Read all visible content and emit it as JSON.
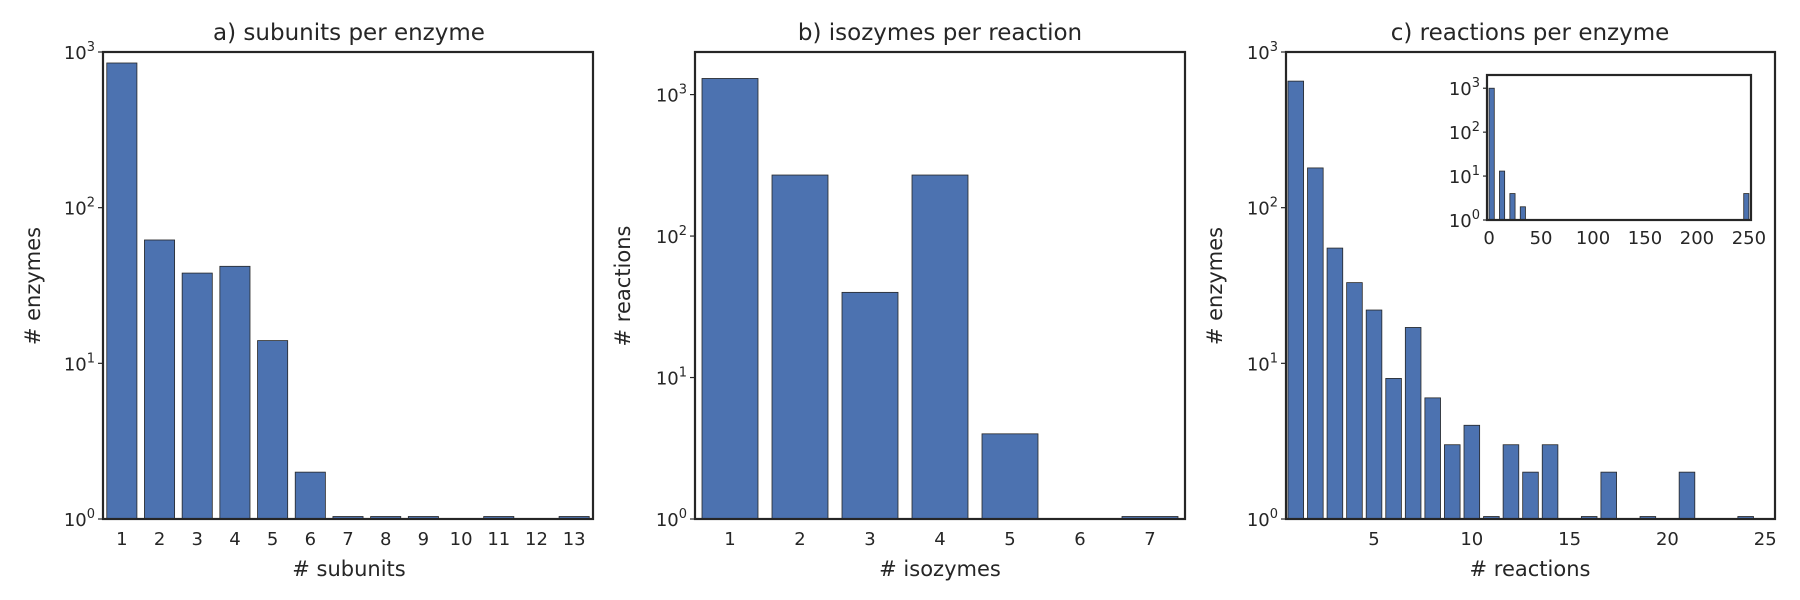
{
  "chart_data": [
    {
      "id": "a",
      "type": "bar",
      "title": "a) subunits per enzyme",
      "xlabel": "# subunits",
      "ylabel": "# enzymes",
      "yscale": "log",
      "ylim": [
        1,
        1000
      ],
      "y_ticks": [
        1,
        10,
        100,
        1000
      ],
      "x_ticks": [
        1,
        2,
        3,
        4,
        5,
        6,
        7,
        8,
        9,
        10,
        11,
        12,
        13
      ],
      "categories": [
        1,
        2,
        3,
        4,
        5,
        6,
        7,
        8,
        9,
        10,
        11,
        12,
        13
      ],
      "values": [
        850,
        62,
        38,
        42,
        14,
        2,
        1,
        1,
        1,
        0,
        1,
        0,
        1
      ],
      "grid": false
    },
    {
      "id": "b",
      "type": "bar",
      "title": "b) isozymes per reaction",
      "xlabel": "# isozymes",
      "ylabel": "# reactions",
      "yscale": "log",
      "ylim": [
        1,
        2000
      ],
      "y_ticks": [
        1,
        10,
        100,
        1000
      ],
      "x_ticks": [
        1,
        2,
        3,
        4,
        5,
        6,
        7
      ],
      "categories": [
        1,
        2,
        3,
        4,
        5,
        6,
        7
      ],
      "values": [
        1300,
        270,
        40,
        270,
        4,
        0,
        1
      ],
      "grid": false
    },
    {
      "id": "c",
      "type": "bar",
      "title": "c) reactions per enzyme",
      "xlabel": "# reactions",
      "ylabel": "# enzymes",
      "yscale": "log",
      "ylim": [
        1,
        1000
      ],
      "y_ticks": [
        1,
        10,
        100,
        1000
      ],
      "x_ticks": [
        5,
        10,
        15,
        20,
        25
      ],
      "xlim": [
        0.5,
        25.5
      ],
      "categories": [
        1,
        2,
        3,
        4,
        5,
        6,
        7,
        8,
        9,
        10,
        11,
        12,
        13,
        14,
        15,
        16,
        17,
        18,
        19,
        20,
        21,
        22,
        23,
        24
      ],
      "values": [
        650,
        180,
        55,
        33,
        22,
        8,
        17,
        6,
        3,
        4,
        1,
        3,
        2,
        3,
        0,
        1,
        2,
        0,
        1,
        0,
        2,
        0,
        0,
        1
      ],
      "grid": false,
      "inset": {
        "type": "bar",
        "yscale": "log",
        "ylim": [
          1,
          2000
        ],
        "y_ticks": [
          1,
          10,
          100,
          1000
        ],
        "xlim": [
          -2,
          252
        ],
        "x_ticks": [
          0,
          50,
          100,
          150,
          200,
          250
        ],
        "bins": [
          {
            "x0": 0,
            "x1": 5,
            "value": 1000
          },
          {
            "x0": 10,
            "x1": 15,
            "value": 13
          },
          {
            "x0": 20,
            "x1": 25,
            "value": 4
          },
          {
            "x0": 30,
            "x1": 35,
            "value": 2
          },
          {
            "x0": 245,
            "x1": 250,
            "value": 4
          }
        ]
      }
    }
  ]
}
